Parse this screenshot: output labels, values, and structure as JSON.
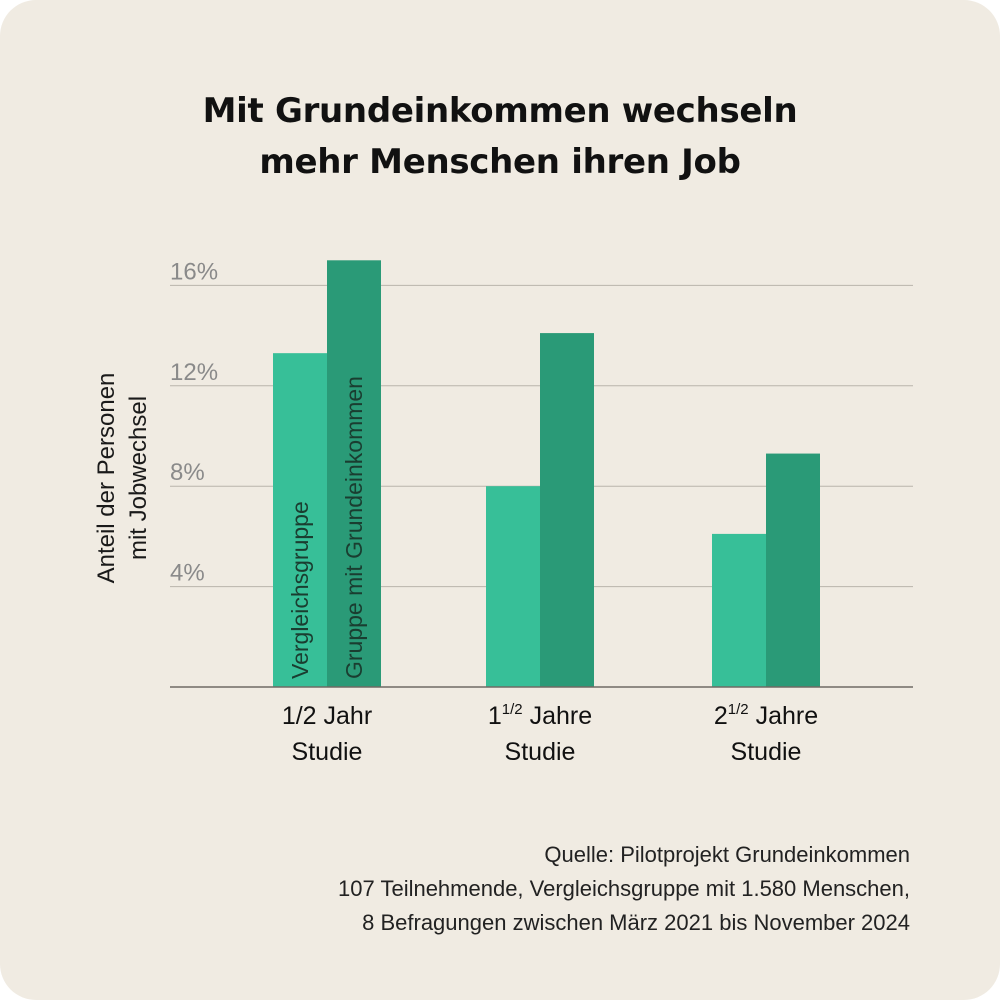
{
  "title": {
    "line1": "Mit Grundeinkommen wechseln",
    "line2": "mehr Menschen ihren Job"
  },
  "source": {
    "line1": "Quelle: Pilotprojekt Grundeinkommen",
    "line2": "107 Teilnehmende, Vergleichsgruppe mit 1.580 Menschen,",
    "line3": "8 Befragungen zwischen März 2021 bis November 2024"
  },
  "chart_data": {
    "type": "bar",
    "title": "Mit Grundeinkommen wechseln mehr Menschen ihren Job",
    "ylabel_lines": [
      "Anteil der Personen",
      "mit Jobwechsel"
    ],
    "ylim": [
      0,
      16
    ],
    "yticks": [
      {
        "value": 4,
        "label": "4%"
      },
      {
        "value": 8,
        "label": "8%"
      },
      {
        "value": 12,
        "label": "12%"
      },
      {
        "value": 16,
        "label": "16%"
      }
    ],
    "grid": true,
    "categories": [
      {
        "lines": [
          {
            "text": "1/2 Jahr"
          },
          {
            "text": "Studie"
          }
        ]
      },
      {
        "lines": [
          {
            "text": "1",
            "sup": "1/2",
            "after": " Jahre"
          },
          {
            "text": "Studie"
          }
        ]
      },
      {
        "lines": [
          {
            "text": "2",
            "sup": "1/2",
            "after": " Jahre"
          },
          {
            "text": "Studie"
          }
        ]
      }
    ],
    "series": [
      {
        "name": "Vergleichsgruppe",
        "color": "#37bf98",
        "values": [
          13.3,
          8.0,
          6.1
        ]
      },
      {
        "name": "Gruppe mit Grundeinkommen",
        "color": "#2a9a77",
        "values": [
          17.0,
          14.1,
          9.3
        ]
      }
    ],
    "legend": "inside first category bars (rotated labels)"
  }
}
